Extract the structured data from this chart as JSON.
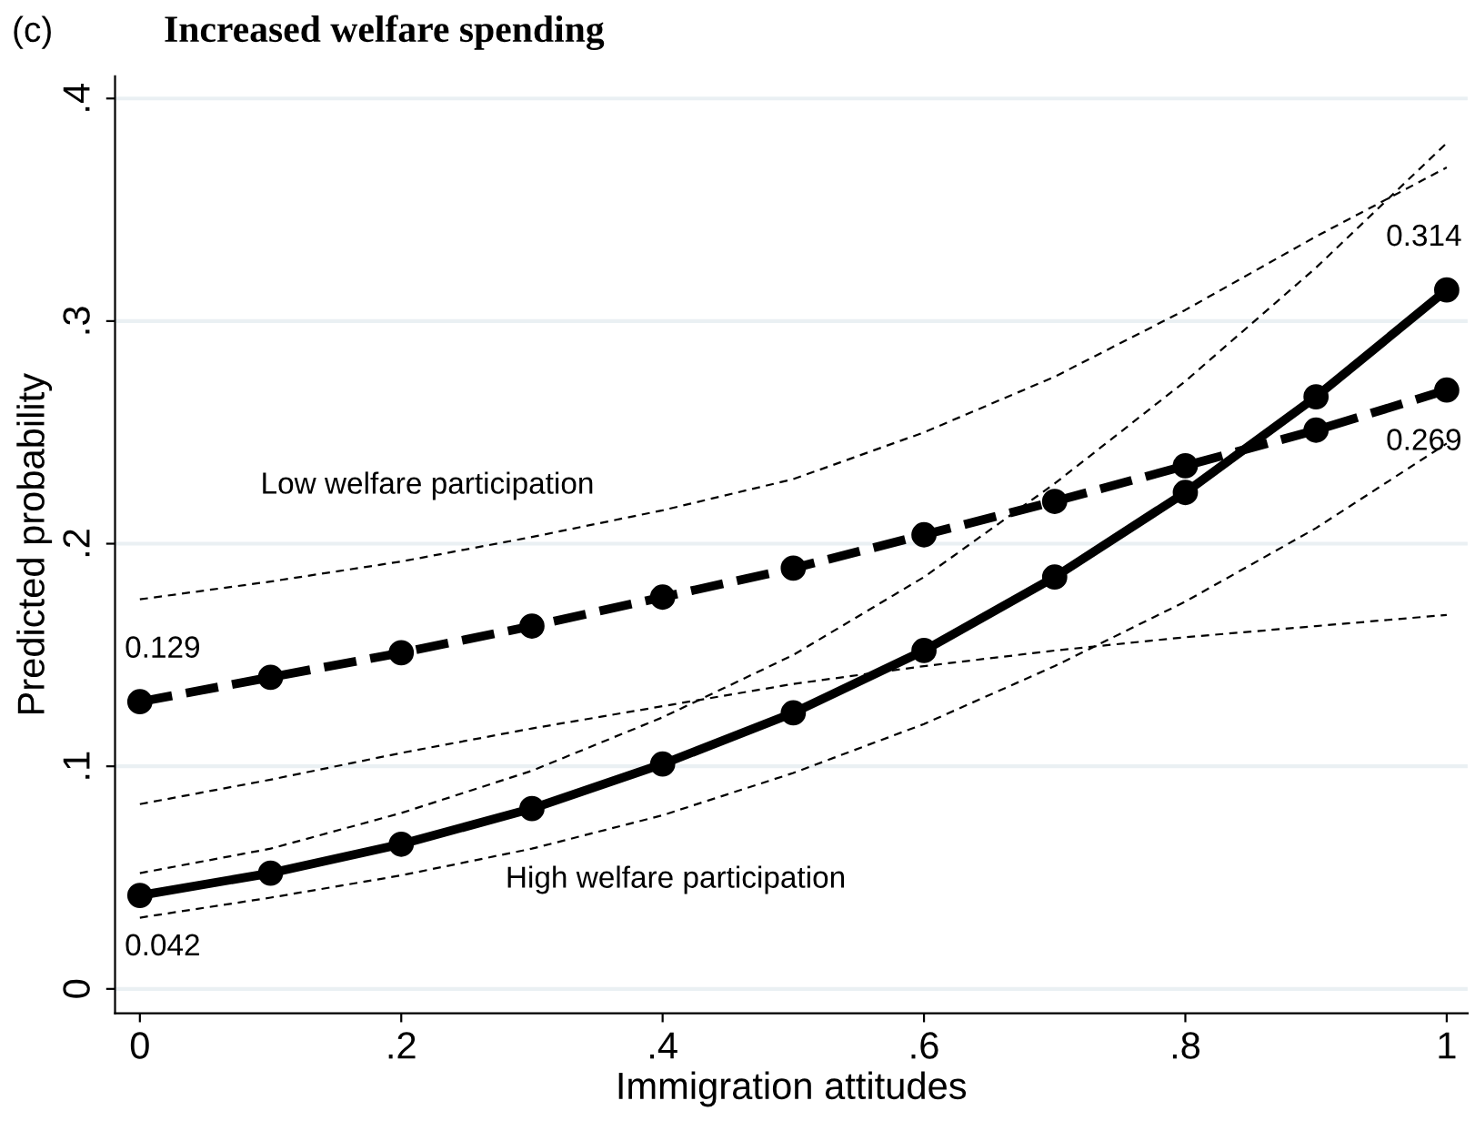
{
  "chart_data": {
    "type": "line",
    "title": "Increased welfare spending",
    "xlabel": "Immigration attitudes",
    "ylabel": "Predicted probability",
    "x": [
      0,
      0.1,
      0.2,
      0.3,
      0.4,
      0.5,
      0.6,
      0.7,
      0.8,
      0.9,
      1
    ],
    "series": [
      {
        "color": "#000000",
        "line_style": "dashed",
        "marker": "circle",
        "values": [
          0.129,
          0.14,
          0.151,
          0.163,
          0.176,
          0.189,
          0.204,
          0.219,
          0.235,
          0.251,
          0.269
        ],
        "value_labels": [
          "0.129",
          null,
          null,
          null,
          null,
          null,
          null,
          null,
          null,
          null,
          "0.269"
        ]
      },
      {
        "color": "#000000",
        "line_style": "solid",
        "marker": "circle",
        "values": [
          0.042,
          0.052,
          0.065,
          0.081,
          0.101,
          0.124,
          0.152,
          0.185,
          0.223,
          0.266,
          0.314
        ],
        "value_labels": [
          "0.042",
          null,
          null,
          null,
          null,
          null,
          null,
          null,
          null,
          null,
          "0.314"
        ]
      },
      {
        "color": "#000000",
        "line_style": "dotted",
        "marker": "none",
        "values": [
          0.175,
          0.183,
          0.192,
          0.203,
          0.215,
          0.229,
          0.25,
          0.275,
          0.305,
          0.338,
          0.369
        ]
      },
      {
        "color": "#000000",
        "line_style": "dotted",
        "marker": "none",
        "values": [
          0.083,
          0.094,
          0.106,
          0.117,
          0.127,
          0.137,
          0.145,
          0.152,
          0.158,
          0.163,
          0.168
        ]
      },
      {
        "color": "#000000",
        "line_style": "dotted",
        "marker": "none",
        "values": [
          0.052,
          0.063,
          0.079,
          0.098,
          0.122,
          0.15,
          0.185,
          0.227,
          0.273,
          0.324,
          0.38
        ]
      },
      {
        "color": "#000000",
        "line_style": "dotted",
        "marker": "none",
        "values": [
          0.032,
          0.041,
          0.051,
          0.063,
          0.078,
          0.097,
          0.119,
          0.145,
          0.174,
          0.207,
          0.245
        ]
      }
    ],
    "annotations": [
      "(c)",
      "Low welfare participation",
      "High welfare participation"
    ],
    "grid": "y",
    "legend": false,
    "xlim": [
      -0.019,
      1.016
    ],
    "ylim": [
      -0.011,
      0.41
    ],
    "xticks": [
      0,
      {
        "value": 0.2,
        "label": ".2"
      },
      {
        "value": 0.4,
        "label": ".4"
      },
      {
        "value": 0.6,
        "label": ".6"
      },
      {
        "value": 0.8,
        "label": ".8"
      },
      1
    ],
    "yticks": [
      0,
      {
        "value": 0.1,
        "label": ".1"
      },
      {
        "value": 0.2,
        "label": ".2"
      },
      {
        "value": 0.3,
        "label": ".3"
      },
      {
        "value": 0.4,
        "label": ".4"
      }
    ]
  }
}
